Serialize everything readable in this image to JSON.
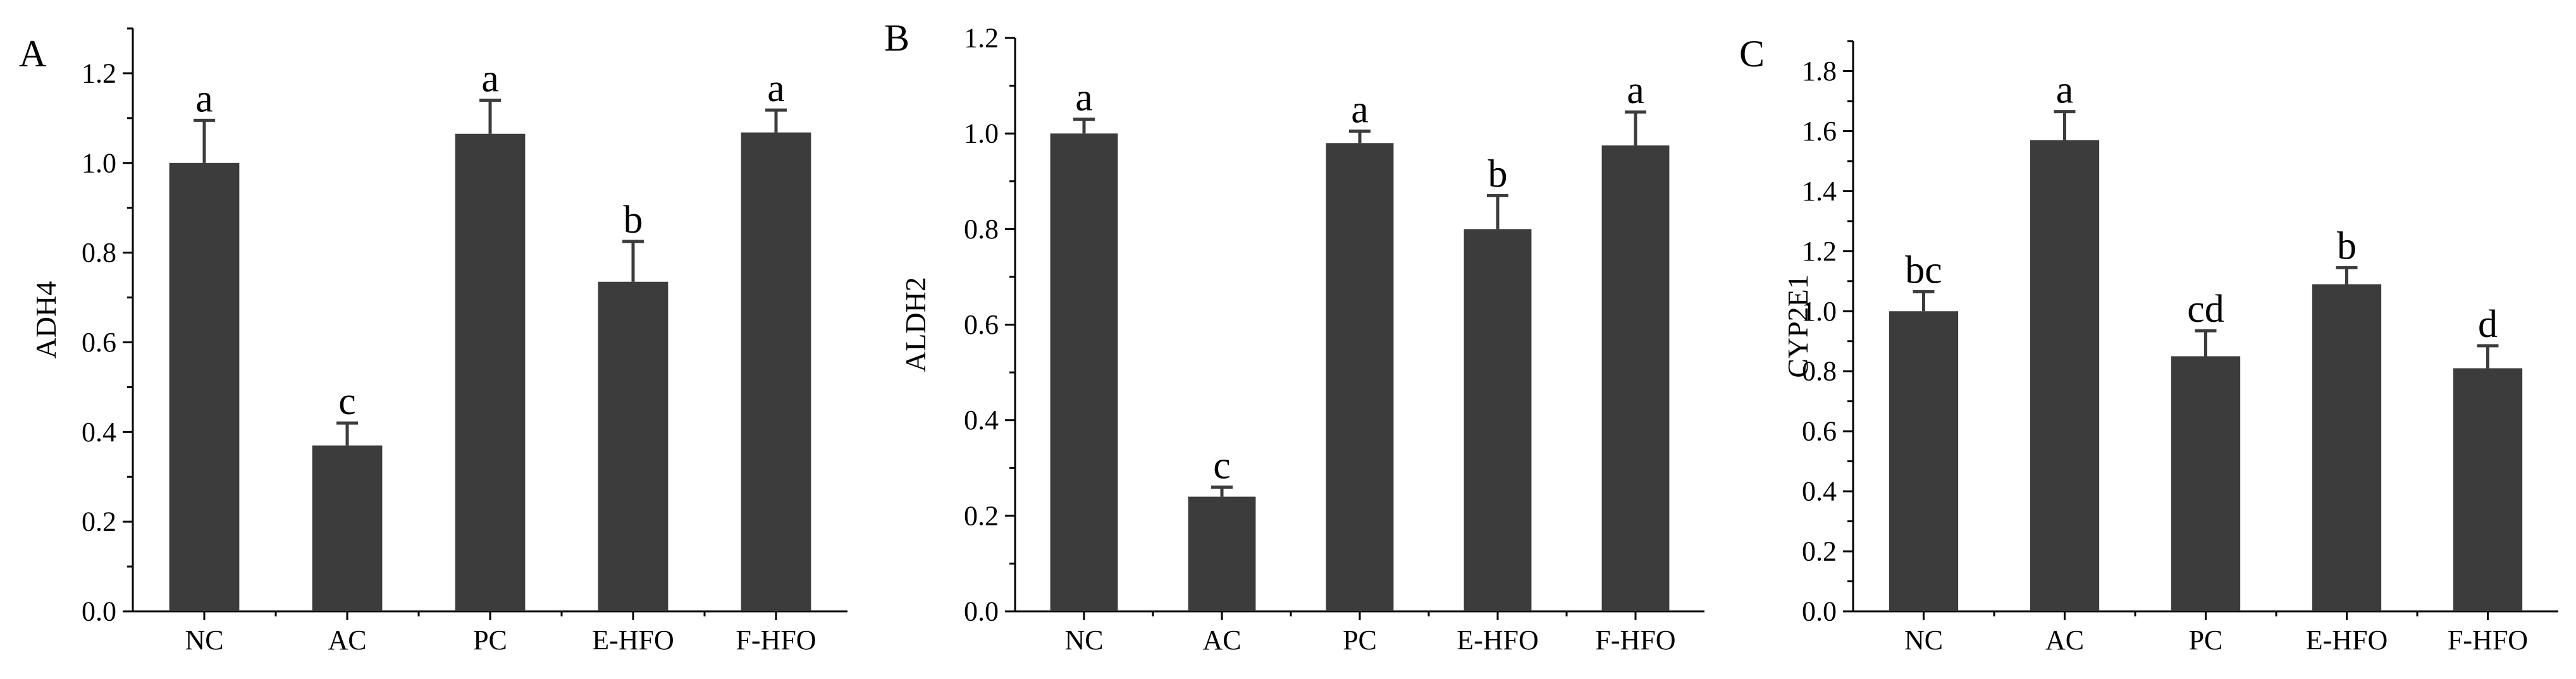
{
  "chart_data": [
    {
      "type": "bar",
      "panel_label": "A",
      "categories": [
        "NC",
        "AC",
        "PC",
        "E-HFO",
        "F-HFO"
      ],
      "values": [
        1.0,
        0.37,
        1.065,
        0.735,
        1.068
      ],
      "errors": [
        0.095,
        0.05,
        0.075,
        0.09,
        0.05
      ],
      "letters": [
        "a",
        "c",
        "a",
        "b",
        "a"
      ],
      "xlabel": "",
      "ylabel": "ADH4",
      "ylim": [
        0,
        1.3
      ],
      "major_ticks": [
        0.0,
        0.2,
        0.4,
        0.6,
        0.8,
        1.0,
        1.2
      ],
      "tick_labels": [
        "0.0",
        "0.2",
        "0.4",
        "0.6",
        "0.8",
        "1.0",
        "1.2"
      ],
      "grid": false,
      "bar_color": "#3c3c3c"
    },
    {
      "type": "bar",
      "panel_label": "B",
      "categories": [
        "NC",
        "AC",
        "PC",
        "E-HFO",
        "F-HFO"
      ],
      "values": [
        1.0,
        0.24,
        0.98,
        0.8,
        0.975
      ],
      "errors": [
        0.03,
        0.02,
        0.025,
        0.07,
        0.07
      ],
      "letters": [
        "a",
        "c",
        "a",
        "b",
        "a"
      ],
      "xlabel": "",
      "ylabel": "ALDH2",
      "ylim": [
        0,
        1.2
      ],
      "major_ticks": [
        0.0,
        0.2,
        0.4,
        0.6,
        0.8,
        1.0,
        1.2
      ],
      "tick_labels": [
        "0.0",
        "0.2",
        "0.4",
        "0.6",
        "0.8",
        "1.0",
        "1.2"
      ],
      "grid": false,
      "bar_color": "#3c3c3c"
    },
    {
      "type": "bar",
      "panel_label": "C",
      "categories": [
        "NC",
        "AC",
        "PC",
        "E-HFO",
        "F-HFO"
      ],
      "values": [
        1.0,
        1.57,
        0.85,
        1.09,
        0.81
      ],
      "errors": [
        0.065,
        0.095,
        0.085,
        0.055,
        0.075
      ],
      "letters": [
        "bc",
        "a",
        "cd",
        "b",
        "d"
      ],
      "xlabel": "",
      "ylabel": "CYP2E1",
      "ylim": [
        0,
        1.9
      ],
      "major_ticks": [
        0.0,
        0.2,
        0.4,
        0.6,
        0.8,
        1.0,
        1.2,
        1.4,
        1.6,
        1.8
      ],
      "tick_labels": [
        "0.0",
        "0.2",
        "0.4",
        "0.6",
        "0.8",
        "1.0",
        "1.2",
        "1.4",
        "1.6",
        "1.8"
      ],
      "grid": false,
      "bar_color": "#3c3c3c"
    }
  ]
}
